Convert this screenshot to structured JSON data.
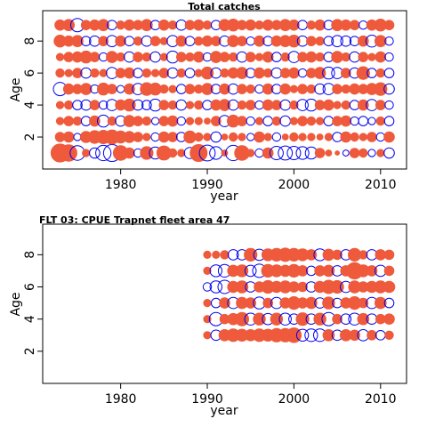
{
  "chart_data": [
    {
      "type": "scatter",
      "subtype": "bubble",
      "title": "Total catches",
      "xlabel": "year",
      "ylabel": "Age",
      "xlim": [
        1971,
        2013
      ],
      "ylim": [
        0,
        9.9
      ],
      "x_ticks": [
        1980,
        1990,
        2000,
        2010
      ],
      "y_ticks": [
        2,
        4,
        6,
        8
      ],
      "grid": false,
      "legend": "none",
      "colors": {
        "positive": "#EE5A3B",
        "negative": "#0000EE"
      },
      "ages": [
        1,
        2,
        3,
        4,
        5,
        6,
        7,
        8,
        9
      ],
      "years": [
        1973,
        1974,
        1975,
        1976,
        1977,
        1978,
        1979,
        1980,
        1981,
        1982,
        1983,
        1984,
        1985,
        1986,
        1987,
        1988,
        1989,
        1990,
        1991,
        1992,
        1993,
        1994,
        1995,
        1996,
        1997,
        1998,
        1999,
        2000,
        2001,
        2002,
        2003,
        2004,
        2005,
        2006,
        2007,
        2008,
        2009,
        2010,
        2011
      ],
      "residuals": [
        [
          1.8,
          1.5,
          -1.2,
          0.3,
          -0.6,
          -1.3,
          -1.6,
          1.2,
          0.6,
          -0.4,
          0.9,
          -0.8,
          1.1,
          0.4,
          0.3,
          -0.7,
          1.6,
          -1.4,
          -0.9,
          0.2,
          -1.3,
          1.2,
          0.3,
          -0.4,
          0.6,
          -1.0,
          -1.1,
          -1.0,
          -0.9,
          -0.8,
          0.5,
          0.2,
          0.1,
          -0.2,
          0.5,
          0.4,
          -0.3,
          0.3,
          -0.6
        ],
        [
          0.5,
          0.6,
          -0.3,
          0.7,
          0.9,
          1.0,
          1.1,
          0.8,
          0.7,
          0.5,
          0.3,
          -0.4,
          0.6,
          0.5,
          -0.5,
          0.8,
          0.4,
          0.3,
          -0.6,
          0.2,
          0.4,
          0.3,
          -0.3,
          0.6,
          0.3,
          -0.4,
          0.2,
          0.4,
          0.3,
          0.3,
          0.2,
          0.3,
          -0.5,
          0.6,
          0.4,
          0.3,
          0.5,
          -0.4,
          0.6
        ],
        [
          0.3,
          0.5,
          0.4,
          -0.5,
          0.6,
          -0.8,
          0.4,
          -0.6,
          0.7,
          0.5,
          0.4,
          -0.3,
          0.5,
          0.6,
          -0.4,
          0.3,
          0.3,
          0.2,
          0.5,
          -0.7,
          0.8,
          0.5,
          -0.4,
          0.3,
          -0.5,
          0.4,
          -0.6,
          0.3,
          0.5,
          0.4,
          0.3,
          -0.5,
          0.5,
          0.6,
          -0.4,
          -0.5,
          -0.3,
          0.4,
          -0.5
        ],
        [
          0.3,
          0.4,
          -0.5,
          -0.6,
          0.5,
          -0.4,
          -0.7,
          0.6,
          0.8,
          -0.6,
          -0.5,
          -0.8,
          0.5,
          0.4,
          -0.6,
          0.3,
          0.4,
          -0.5,
          0.6,
          0.7,
          -0.6,
          0.4,
          0.5,
          -0.4,
          0.6,
          0.5,
          -0.6,
          0.4,
          -0.7,
          -0.8,
          0.5,
          0.6,
          0.3,
          0.4,
          -0.5,
          0.6,
          -0.7,
          0.5,
          -0.4
        ],
        [
          -1.0,
          0.6,
          0.5,
          0.7,
          -0.4,
          0.8,
          0.5,
          -0.3,
          0.6,
          -0.7,
          0.9,
          0.8,
          0.4,
          0.3,
          -0.5,
          0.5,
          0.4,
          0.7,
          -0.5,
          0.6,
          -0.6,
          0.5,
          0.4,
          -0.4,
          0.6,
          -0.5,
          0.6,
          0.3,
          0.5,
          0.4,
          -0.6,
          -0.7,
          0.5,
          0.4,
          0.6,
          0.5,
          0.7,
          0.9,
          -0.6
        ],
        [
          0.4,
          0.3,
          0.5,
          -0.6,
          0.4,
          0.3,
          -0.7,
          0.5,
          0.6,
          -0.5,
          0.4,
          0.3,
          0.5,
          -0.6,
          0.4,
          -0.5,
          0.3,
          0.8,
          -0.6,
          0.4,
          0.6,
          0.7,
          -0.5,
          0.6,
          0.4,
          -0.6,
          0.5,
          0.6,
          -0.4,
          0.5,
          0.7,
          -0.8,
          -0.7,
          0.5,
          -0.6,
          0.9,
          -0.5,
          0.4,
          -0.5
        ],
        [
          0.3,
          0.5,
          0.6,
          0.8,
          0.5,
          -0.4,
          0.7,
          0.4,
          -0.6,
          0.5,
          0.4,
          -0.6,
          0.3,
          -0.8,
          0.5,
          0.4,
          0.6,
          -0.4,
          0.7,
          0.5,
          0.4,
          -0.6,
          0.5,
          0.3,
          0.6,
          -0.5,
          0.4,
          -0.7,
          0.5,
          0.6,
          0.4,
          -0.5,
          0.7,
          0.4,
          -0.6,
          0.5,
          0.3,
          0.6,
          -0.4
        ],
        [
          0.8,
          0.6,
          0.7,
          -0.5,
          -0.6,
          0.5,
          -0.7,
          0.6,
          -0.5,
          0.4,
          -0.6,
          0.5,
          0.3,
          -0.7,
          0.6,
          -0.5,
          0.4,
          0.6,
          0.5,
          -0.6,
          0.7,
          0.5,
          -0.4,
          0.6,
          -0.5,
          0.6,
          0.7,
          0.8,
          -0.6,
          0.5,
          0.4,
          -0.5,
          -0.7,
          -0.6,
          -0.5,
          0.6,
          -0.8,
          0.7,
          -0.4
        ],
        [
          0.6,
          0.7,
          -1.0,
          0.5,
          0.6,
          0.7,
          -0.5,
          0.4,
          0.6,
          0.5,
          0.7,
          -0.5,
          0.6,
          0.4,
          -0.6,
          0.5,
          0.6,
          0.4,
          -0.5,
          0.7,
          0.8,
          0.5,
          0.6,
          0.4,
          0.6,
          0.5,
          0.7,
          0.6,
          -0.5,
          0.4,
          0.6,
          -0.5,
          0.7,
          0.6,
          0.5,
          -0.4,
          0.6,
          0.8,
          0.5
        ]
      ]
    },
    {
      "type": "scatter",
      "subtype": "bubble",
      "title": "FLT 03: CPUE Trapnet fleet area 47",
      "xlabel": "year",
      "ylabel": "Age",
      "xlim": [
        1971,
        2013
      ],
      "ylim": [
        0,
        9.9
      ],
      "x_ticks": [
        1980,
        1990,
        2000,
        2010
      ],
      "y_ticks": [
        2,
        4,
        6,
        8
      ],
      "grid": false,
      "legend": "none",
      "colors": {
        "positive": "#EE5A3B",
        "negative": "#0000EE"
      },
      "ages": [
        3,
        4,
        5,
        6,
        7,
        8
      ],
      "years": [
        1990,
        1991,
        1992,
        1993,
        1994,
        1995,
        1996,
        1997,
        1998,
        1999,
        2000,
        2001,
        2002,
        2003,
        2004,
        2005,
        2006,
        2007,
        2008,
        2009,
        2010,
        2011
      ],
      "residuals": [
        [
          0.3,
          -0.6,
          0.7,
          0.9,
          0.8,
          0.7,
          0.9,
          0.8,
          1.0,
          1.0,
          1.2,
          -0.8,
          -0.9,
          -0.9,
          0.7,
          -0.6,
          0.7,
          0.6,
          -0.7,
          0.5,
          -0.5,
          0.4
        ],
        [
          0.3,
          -1.0,
          0.5,
          0.7,
          1.0,
          -0.8,
          0.8,
          -0.7,
          0.8,
          -0.8,
          -0.6,
          0.9,
          -0.6,
          0.8,
          -1.0,
          0.5,
          -0.6,
          -0.8,
          0.7,
          -0.6,
          0.5,
          0.6
        ],
        [
          0.3,
          -0.5,
          0.6,
          -0.7,
          0.7,
          0.6,
          -0.8,
          0.5,
          -0.7,
          0.6,
          0.9,
          0.6,
          0.7,
          -0.6,
          0.8,
          -0.5,
          0.6,
          0.9,
          0.5,
          -0.7,
          0.7,
          -0.5
        ],
        [
          -0.4,
          -0.8,
          -1.0,
          0.7,
          0.8,
          -0.6,
          0.6,
          0.9,
          0.7,
          0.8,
          0.6,
          0.5,
          -0.6,
          0.7,
          1.0,
          0.9,
          -0.7,
          0.8,
          0.6,
          0.7,
          0.8,
          0.7
        ],
        [
          0.3,
          -0.8,
          -0.9,
          0.7,
          0.8,
          -0.7,
          -1.0,
          0.9,
          0.8,
          0.7,
          0.9,
          0.6,
          -0.5,
          0.6,
          0.7,
          -0.6,
          0.6,
          1.5,
          0.8,
          0.6,
          -0.7,
          0.5
        ],
        [
          0.3,
          0.3,
          0.4,
          -0.6,
          -0.6,
          0.9,
          -0.7,
          0.8,
          0.9,
          1.0,
          0.9,
          0.8,
          0.6,
          -0.8,
          0.7,
          0.5,
          -0.6,
          0.9,
          0.4,
          -0.6,
          0.6,
          0.5
        ]
      ]
    }
  ]
}
